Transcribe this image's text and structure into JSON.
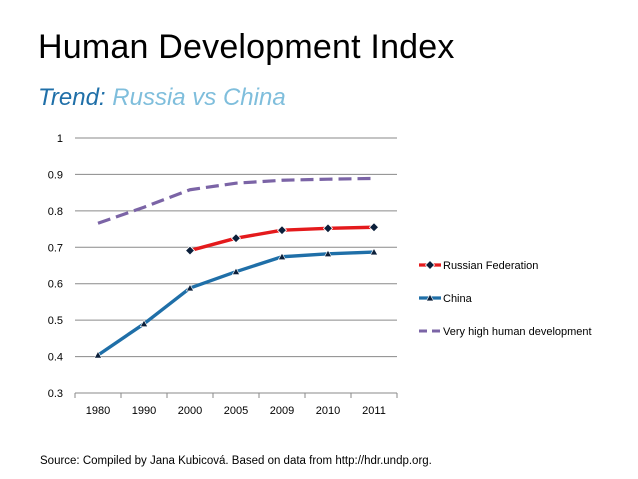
{
  "slide": {
    "title": "Human Development Index",
    "subtitle_lead": "Trend:",
    "subtitle_rest": "Russia vs China",
    "source": "Source: Compiled by Jana Kubicová. Based on data from http://hdr.undp.org."
  },
  "chart_data": {
    "type": "line",
    "title": "Human Development Index",
    "xlabel": "",
    "ylabel": "",
    "ylim": [
      0.3,
      1
    ],
    "yticks": [
      "0.3",
      "0.4",
      "0.5",
      "0.6",
      "0.7",
      "0.8",
      "0.9",
      "1"
    ],
    "categories": [
      "1980",
      "1990",
      "2000",
      "2005",
      "2009",
      "2010",
      "2011"
    ],
    "grid": true,
    "legend_position": "right",
    "series": [
      {
        "name": "Russian Federation",
        "values": [
          null,
          null,
          0.691,
          0.725,
          0.747,
          0.752,
          0.755
        ],
        "color": "#e41a1c",
        "marker": "diamond",
        "dash": "solid"
      },
      {
        "name": "China",
        "values": [
          0.404,
          0.49,
          0.588,
          0.633,
          0.674,
          0.682,
          0.687
        ],
        "color": "#1f6fa8",
        "marker": "triangle",
        "dash": "solid"
      },
      {
        "name": "Very high human development",
        "values": [
          0.766,
          0.81,
          0.858,
          0.876,
          0.884,
          0.887,
          0.889
        ],
        "color": "#7b64a6",
        "marker": "none",
        "dash": "dashed"
      }
    ]
  }
}
